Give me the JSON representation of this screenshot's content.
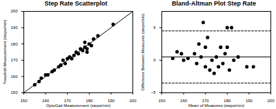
{
  "chart_data": [
    {
      "type": "scatter",
      "title": "Step Rate Scatterplot",
      "x_label": "OptoGait Measurement (steps/min)",
      "y_label": "Treadmill Measurement (steps/min)",
      "xlim": [
        150,
        200
      ],
      "xticks": [
        150,
        160,
        170,
        180,
        190,
        200
      ],
      "ylim": [
        150,
        200
      ],
      "yticks": [
        150,
        160,
        170,
        180,
        190,
        200
      ],
      "grid": false,
      "series": [
        {
          "type": "scatter",
          "marker": "circle",
          "color": "#000000",
          "x": [
            155,
            157,
            158,
            160,
            161,
            163,
            164,
            166,
            167,
            168,
            169,
            170,
            171,
            172,
            173,
            174,
            175,
            176,
            177,
            178,
            179,
            180,
            181,
            182,
            184,
            179,
            178,
            191
          ],
          "values": [
            155,
            157,
            159,
            161,
            161,
            163,
            164,
            166,
            167,
            170,
            168,
            171,
            172,
            171,
            173,
            175,
            174,
            177,
            176,
            178,
            177,
            180,
            179,
            183,
            185,
            175,
            181,
            192
          ]
        },
        {
          "type": "line",
          "line_style": "solid",
          "color": "#000000",
          "x": [
            150,
            200
          ],
          "values": [
            150,
            200
          ]
        }
      ]
    },
    {
      "type": "scatter",
      "title": "Bland-Altman Plot Step Rate",
      "x_label": "Mean of Measures (steps/min)",
      "y_label": "Difference Between Measures (steps/min)",
      "xlim": [
        150,
        200
      ],
      "xticks": [
        150,
        160,
        170,
        180,
        190,
        200
      ],
      "ylim": [
        -5,
        7.5
      ],
      "yticks": [
        -5,
        0,
        5
      ],
      "grid": false,
      "series": [
        {
          "type": "scatter",
          "marker": "circle",
          "color": "#000000",
          "x": [
            155,
            157,
            159,
            160,
            162,
            165,
            166,
            167,
            168,
            169,
            170,
            170,
            171,
            172,
            173,
            174,
            175,
            176,
            177,
            178,
            179,
            180,
            180,
            181,
            182,
            183,
            185,
            189,
            192
          ],
          "values": [
            0.3,
            1.3,
            1,
            0,
            0.3,
            1,
            -0.5,
            2.5,
            0.5,
            5.8,
            -1,
            2,
            3.5,
            -1.5,
            0,
            -2,
            0.5,
            -1,
            2,
            -0.5,
            1,
            5,
            2,
            -1.5,
            5,
            0,
            0.5,
            -1,
            -1
          ]
        },
        {
          "type": "line",
          "line_style": "solid",
          "color": "#000000",
          "x": [
            150,
            200
          ],
          "values": [
            0.5,
            0.5
          ]
        },
        {
          "type": "line",
          "line_style": "dashed",
          "color": "#000000",
          "x": [
            150,
            200
          ],
          "values": [
            4.5,
            4.5
          ]
        },
        {
          "type": "line",
          "line_style": "dashed",
          "color": "#000000",
          "x": [
            150,
            200
          ],
          "values": [
            -3.5,
            -3.5
          ]
        }
      ]
    }
  ]
}
